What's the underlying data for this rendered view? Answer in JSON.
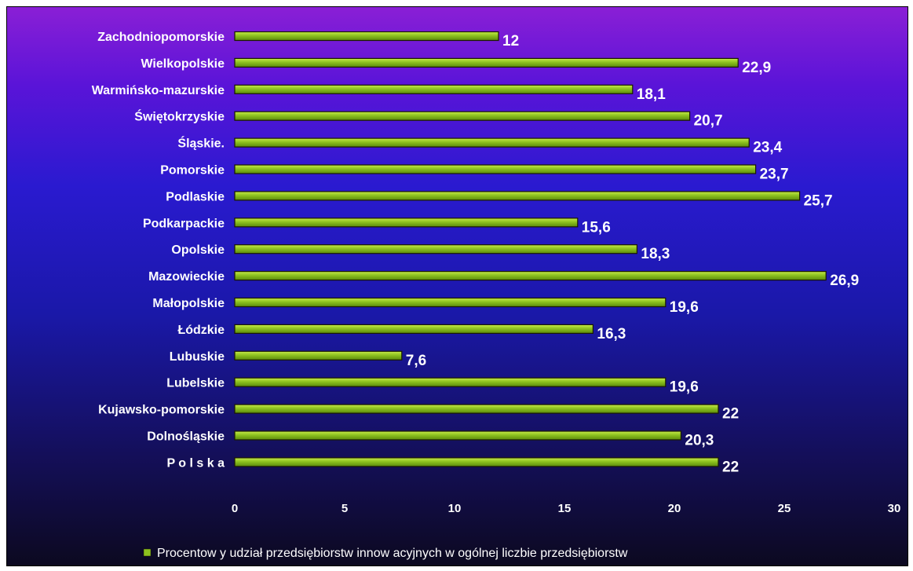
{
  "chart_data": {
    "type": "bar",
    "orientation": "horizontal",
    "categories": [
      "Zachodniopomorskie",
      "Wielkopolskie",
      "Warmińsko-mazurskie",
      "Świętokrzyskie",
      "Śląskie.",
      "Pomorskie",
      "Podlaskie",
      "Podkarpackie",
      "Opolskie",
      "Mazowieckie",
      "Małopolskie",
      "Łódzkie",
      "Lubuskie",
      "Lubelskie",
      "Kujawsko-pomorskie",
      "Dolnośląskie",
      "P o l s k a"
    ],
    "values": [
      12,
      22.9,
      18.1,
      20.7,
      23.4,
      23.7,
      25.7,
      15.6,
      18.3,
      26.9,
      19.6,
      16.3,
      7.6,
      19.6,
      22,
      20.3,
      22
    ],
    "value_labels": [
      "12",
      "22,9",
      "18,1",
      "20,7",
      "23,4",
      "23,7",
      "25,7",
      "15,6",
      "18,3",
      "26,9",
      "19,6",
      "16,3",
      "7,6",
      "19,6",
      "22",
      "20,3",
      "22"
    ],
    "xlim": [
      0,
      30
    ],
    "x_ticks": [
      0,
      5,
      10,
      15,
      20,
      25,
      30
    ],
    "grid": false,
    "legend": {
      "placement": "bottom",
      "entries": [
        "Procentow y udział przedsiębiorstw   innow acyjnych w  ogólnej liczbie przedsiębiorstw"
      ]
    },
    "colors": {
      "bar": "#8dc21f",
      "bar_stroke": "#1a1a00",
      "text": "#ffffff"
    }
  }
}
